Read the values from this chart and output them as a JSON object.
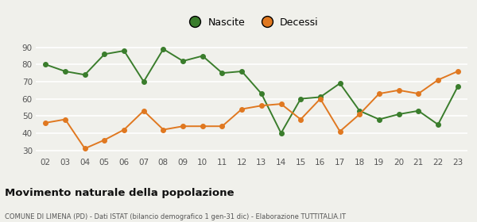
{
  "years": [
    "02",
    "03",
    "04",
    "05",
    "06",
    "07",
    "08",
    "09",
    "10",
    "11",
    "12",
    "13",
    "14",
    "15",
    "16",
    "17",
    "18",
    "19",
    "20",
    "21",
    "22",
    "23"
  ],
  "nascite": [
    80,
    76,
    74,
    86,
    88,
    70,
    89,
    82,
    85,
    75,
    76,
    63,
    40,
    60,
    61,
    69,
    53,
    48,
    51,
    53,
    45,
    67
  ],
  "decessi": [
    46,
    48,
    31,
    36,
    42,
    53,
    42,
    44,
    44,
    44,
    54,
    56,
    57,
    48,
    60,
    41,
    51,
    63,
    65,
    63,
    71,
    76
  ],
  "nascite_color": "#3a7d2c",
  "decessi_color": "#e07820",
  "bg_color": "#f0f0eb",
  "grid_color": "#ffffff",
  "ylim": [
    27,
    93
  ],
  "yticks": [
    30,
    40,
    50,
    60,
    70,
    80,
    90
  ],
  "title": "Movimento naturale della popolazione",
  "subtitle": "COMUNE DI LIMENA (PD) - Dati ISTAT (bilancio demografico 1 gen-31 dic) - Elaborazione TUTTITALIA.IT",
  "legend_nascite": "Nascite",
  "legend_decessi": "Decessi"
}
